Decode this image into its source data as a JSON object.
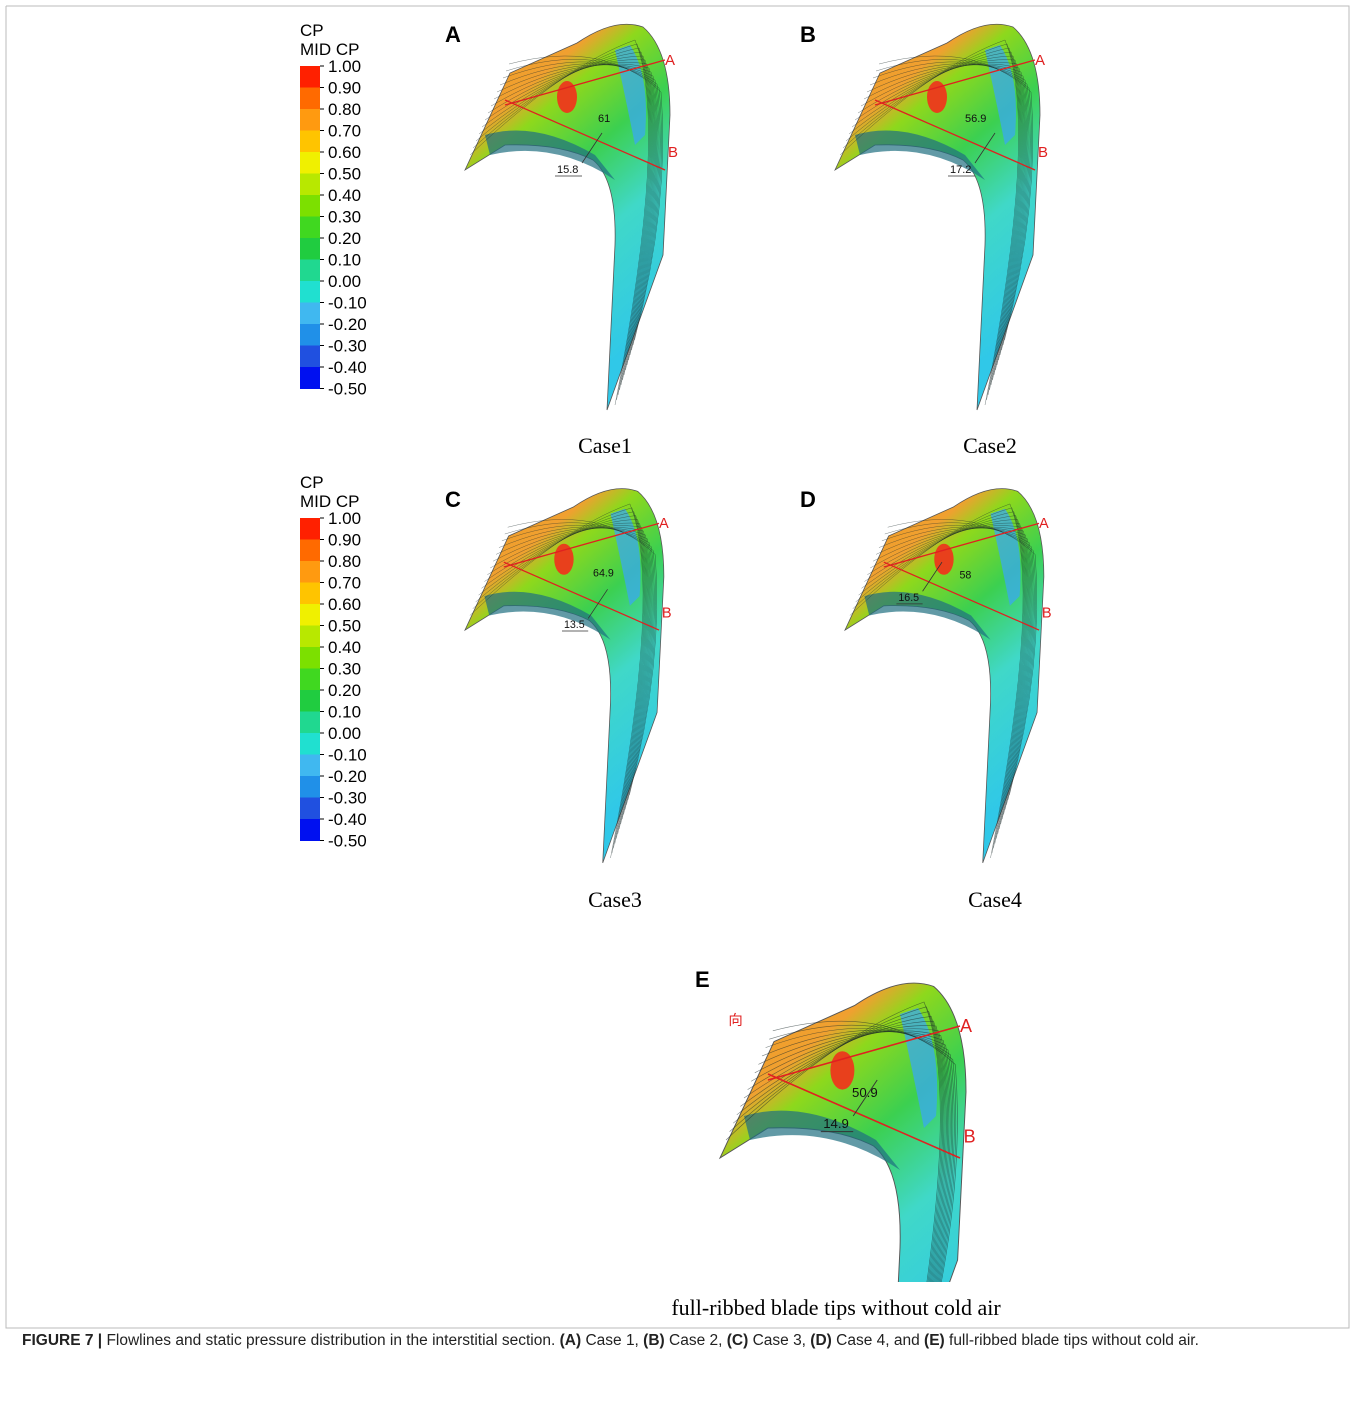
{
  "legends": [
    {
      "title": "CP",
      "subtitle": "MID CP",
      "levels": [
        "1.00",
        "0.90",
        "0.80",
        "0.70",
        "0.60",
        "0.50",
        "0.40",
        "0.30",
        "0.20",
        "0.10",
        "0.00",
        "-0.10",
        "-0.20",
        "-0.30",
        "-0.40",
        "-0.50"
      ]
    },
    {
      "title": "CP",
      "subtitle": "MID CP",
      "levels": [
        "1.00",
        "0.90",
        "0.80",
        "0.70",
        "0.60",
        "0.50",
        "0.40",
        "0.30",
        "0.20",
        "0.10",
        "0.00",
        "-0.10",
        "-0.20",
        "-0.30",
        "-0.40",
        "-0.50"
      ]
    }
  ],
  "panels": [
    {
      "letter": "A",
      "caption": "Case1",
      "section_labels": [
        "A",
        "B"
      ],
      "angles": [
        "61",
        "15.8"
      ]
    },
    {
      "letter": "B",
      "caption": "Case2",
      "section_labels": [
        "A",
        "B"
      ],
      "angles": [
        "56.9",
        "17.2"
      ]
    },
    {
      "letter": "C",
      "caption": "Case3",
      "section_labels": [
        "A",
        "B"
      ],
      "angles": [
        "64.9",
        "13.5"
      ]
    },
    {
      "letter": "D",
      "caption": "Case4",
      "section_labels": [
        "A",
        "B"
      ],
      "angles": [
        "58",
        "16.5"
      ]
    },
    {
      "letter": "E",
      "caption": "full-ribbed blade tips without cold air",
      "section_labels": [
        "A",
        "B"
      ],
      "angles": [
        "50.9",
        "14.9"
      ],
      "mark": "向"
    }
  ],
  "figure_caption": [
    {
      "bold": true,
      "text": "FIGURE 7 |"
    },
    {
      "text": " Flowlines and static pressure distribution in the interstitial section. "
    },
    {
      "bold": true,
      "text": "(A)"
    },
    {
      "text": " Case 1, "
    },
    {
      "bold": true,
      "text": "(B)"
    },
    {
      "text": " Case 2, "
    },
    {
      "bold": true,
      "text": "(C)"
    },
    {
      "text": " Case 3, "
    },
    {
      "bold": true,
      "text": "(D)"
    },
    {
      "text": " Case 4, and "
    },
    {
      "bold": true,
      "text": "(E)"
    },
    {
      "text": " full-ribbed blade tips without cold air."
    }
  ]
}
